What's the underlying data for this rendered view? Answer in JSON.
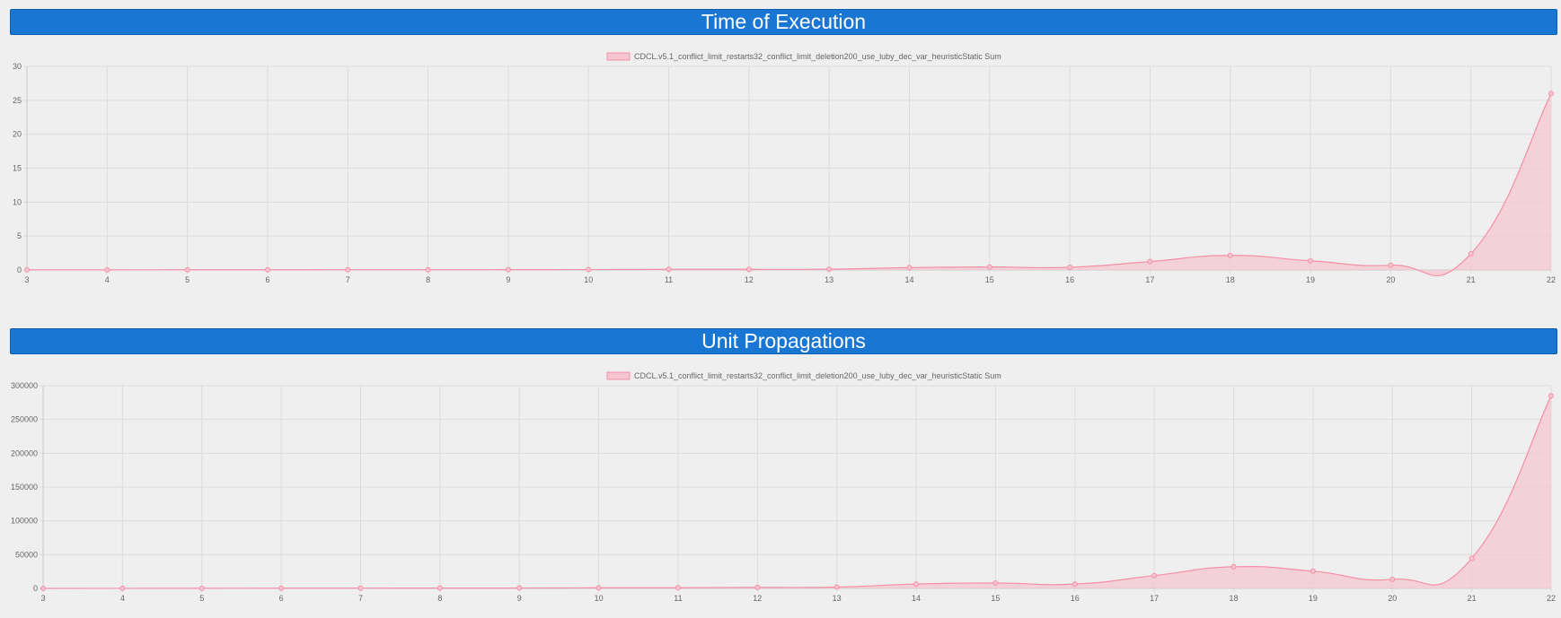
{
  "colors": {
    "header_bg": "#1976d2",
    "header_text": "#ffffff",
    "series_line": "#f48fa8",
    "series_fill": "#f5c6d1",
    "grid": "#dcdcdc",
    "background": "#efefef"
  },
  "chart_data": [
    {
      "type": "area",
      "title": "Time of Execution",
      "legend_position": "top-center",
      "grid": true,
      "x": [
        3,
        4,
        5,
        6,
        7,
        8,
        9,
        10,
        11,
        12,
        13,
        14,
        15,
        16,
        17,
        18,
        19,
        20,
        21,
        22
      ],
      "ylim": [
        0,
        30
      ],
      "yticks": [
        0,
        5,
        10,
        15,
        20,
        25,
        30
      ],
      "series": [
        {
          "name": "CDCL.v5.1_conflict_limit_restarts32_conflict_limit_deletion200_use_luby_dec_var_heuristicStatic Sum",
          "values": [
            0.02,
            0.02,
            0.03,
            0.03,
            0.04,
            0.04,
            0.05,
            0.06,
            0.1,
            0.1,
            0.12,
            0.35,
            0.45,
            0.4,
            1.25,
            2.15,
            1.35,
            0.7,
            2.4,
            26
          ]
        }
      ]
    },
    {
      "type": "area",
      "title": "Unit Propagations",
      "legend_position": "top-center",
      "grid": true,
      "x": [
        3,
        4,
        5,
        6,
        7,
        8,
        9,
        10,
        11,
        12,
        13,
        14,
        15,
        16,
        17,
        18,
        19,
        20,
        21,
        22
      ],
      "ylim": [
        0,
        300000
      ],
      "yticks": [
        0,
        50000,
        100000,
        150000,
        200000,
        250000,
        300000
      ],
      "series": [
        {
          "name": "CDCL.v5.1_conflict_limit_restarts32_conflict_limit_deletion200_use_luby_dec_var_heuristicStatic Sum",
          "values": [
            0,
            100,
            200,
            300,
            400,
            500,
            600,
            800,
            1000,
            1500,
            2000,
            6500,
            8000,
            6500,
            19000,
            32000,
            25500,
            13500,
            44500,
            285000
          ]
        }
      ]
    }
  ]
}
